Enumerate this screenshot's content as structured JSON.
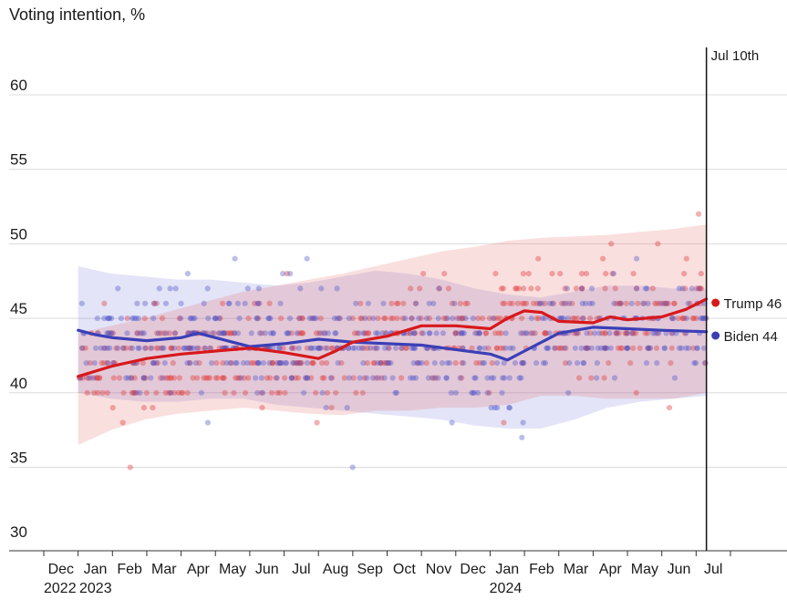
{
  "chart_data": {
    "type": "scatter",
    "title": "Voting intention, %",
    "xlabel": "",
    "ylabel": "Voting intention, %",
    "ylim": [
      30,
      63
    ],
    "yticks": [
      30,
      35,
      40,
      45,
      50,
      55,
      60
    ],
    "x_domain": [
      "2022-11-15",
      "2024-07-31"
    ],
    "x_month_labels": [
      "Dec",
      "Jan",
      "Feb",
      "Mar",
      "Apr",
      "May",
      "Jun",
      "Jul",
      "Aug",
      "Sep",
      "Oct",
      "Nov",
      "Dec",
      "Jan",
      "Feb",
      "Mar",
      "Apr",
      "May",
      "Jun",
      "Jul"
    ],
    "x_year_labels": [
      {
        "label": "2022",
        "month_index": 0
      },
      {
        "label": "2023",
        "month_index": 1
      },
      {
        "label": "2024",
        "month_index": 13
      }
    ],
    "annotation": {
      "label": "Jul 10th",
      "date_month_index": 19.3
    },
    "grid": true,
    "series": [
      {
        "name": "Trump",
        "color": "#d7191c",
        "end_label": "Trump 46",
        "trend": [
          {
            "m": 1,
            "v": 41.1
          },
          {
            "m": 2,
            "v": 41.8
          },
          {
            "m": 3,
            "v": 42.3
          },
          {
            "m": 4,
            "v": 42.6
          },
          {
            "m": 5,
            "v": 42.8
          },
          {
            "m": 6,
            "v": 43.0
          },
          {
            "m": 7,
            "v": 42.7
          },
          {
            "m": 8,
            "v": 42.3
          },
          {
            "m": 8.5,
            "v": 42.8
          },
          {
            "m": 9,
            "v": 43.4
          },
          {
            "m": 10,
            "v": 43.8
          },
          {
            "m": 11,
            "v": 44.5
          },
          {
            "m": 12,
            "v": 44.5
          },
          {
            "m": 13,
            "v": 44.3
          },
          {
            "m": 13.5,
            "v": 45.0
          },
          {
            "m": 14,
            "v": 45.5
          },
          {
            "m": 14.5,
            "v": 45.4
          },
          {
            "m": 15,
            "v": 44.8
          },
          {
            "m": 16,
            "v": 44.7
          },
          {
            "m": 16.5,
            "v": 45.1
          },
          {
            "m": 17,
            "v": 44.9
          },
          {
            "m": 18,
            "v": 45.1
          },
          {
            "m": 18.7,
            "v": 45.6
          },
          {
            "m": 19.3,
            "v": 46.3
          }
        ],
        "band_upper": [
          44.0,
          44.5,
          45.0,
          45.6,
          46.2,
          46.8,
          47.2,
          47.6,
          48.0,
          48.5,
          49.0,
          49.5,
          49.8,
          50.2,
          50.4,
          50.5,
          50.6,
          50.8,
          51.0,
          51.3
        ],
        "band_lower": [
          36.5,
          37.5,
          38.2,
          38.6,
          38.8,
          39.0,
          38.8,
          38.6,
          38.5,
          38.8,
          38.8,
          39.0,
          39.0,
          39.2,
          39.8,
          39.8,
          39.6,
          39.6,
          39.6,
          40.0
        ]
      },
      {
        "name": "Biden",
        "color": "#3b3fb6",
        "end_label": "Biden 44",
        "trend": [
          {
            "m": 1,
            "v": 44.2
          },
          {
            "m": 1.5,
            "v": 43.9
          },
          {
            "m": 2,
            "v": 43.7
          },
          {
            "m": 3,
            "v": 43.5
          },
          {
            "m": 4,
            "v": 43.7
          },
          {
            "m": 4.5,
            "v": 44.0
          },
          {
            "m": 5,
            "v": 43.7
          },
          {
            "m": 6,
            "v": 43.1
          },
          {
            "m": 7,
            "v": 43.3
          },
          {
            "m": 8,
            "v": 43.6
          },
          {
            "m": 9,
            "v": 43.4
          },
          {
            "m": 10,
            "v": 43.3
          },
          {
            "m": 11,
            "v": 43.2
          },
          {
            "m": 12,
            "v": 42.9
          },
          {
            "m": 13,
            "v": 42.6
          },
          {
            "m": 13.5,
            "v": 42.2
          },
          {
            "m": 14,
            "v": 42.8
          },
          {
            "m": 15,
            "v": 44.0
          },
          {
            "m": 16,
            "v": 44.4
          },
          {
            "m": 17,
            "v": 44.3
          },
          {
            "m": 18,
            "v": 44.2
          },
          {
            "m": 19.3,
            "v": 44.1
          }
        ],
        "band_upper": [
          48.5,
          48.0,
          47.8,
          47.6,
          47.6,
          47.4,
          47.2,
          47.4,
          47.8,
          48.2,
          48.0,
          47.6,
          47.0,
          46.6,
          46.4,
          46.8,
          47.2,
          47.2,
          47.0,
          47.0
        ],
        "band_lower": [
          40.0,
          39.6,
          39.4,
          39.4,
          39.6,
          39.6,
          39.2,
          39.0,
          38.8,
          38.6,
          38.4,
          38.2,
          37.8,
          37.6,
          37.6,
          38.2,
          39.0,
          39.4,
          39.6,
          39.8
        ]
      }
    ]
  }
}
